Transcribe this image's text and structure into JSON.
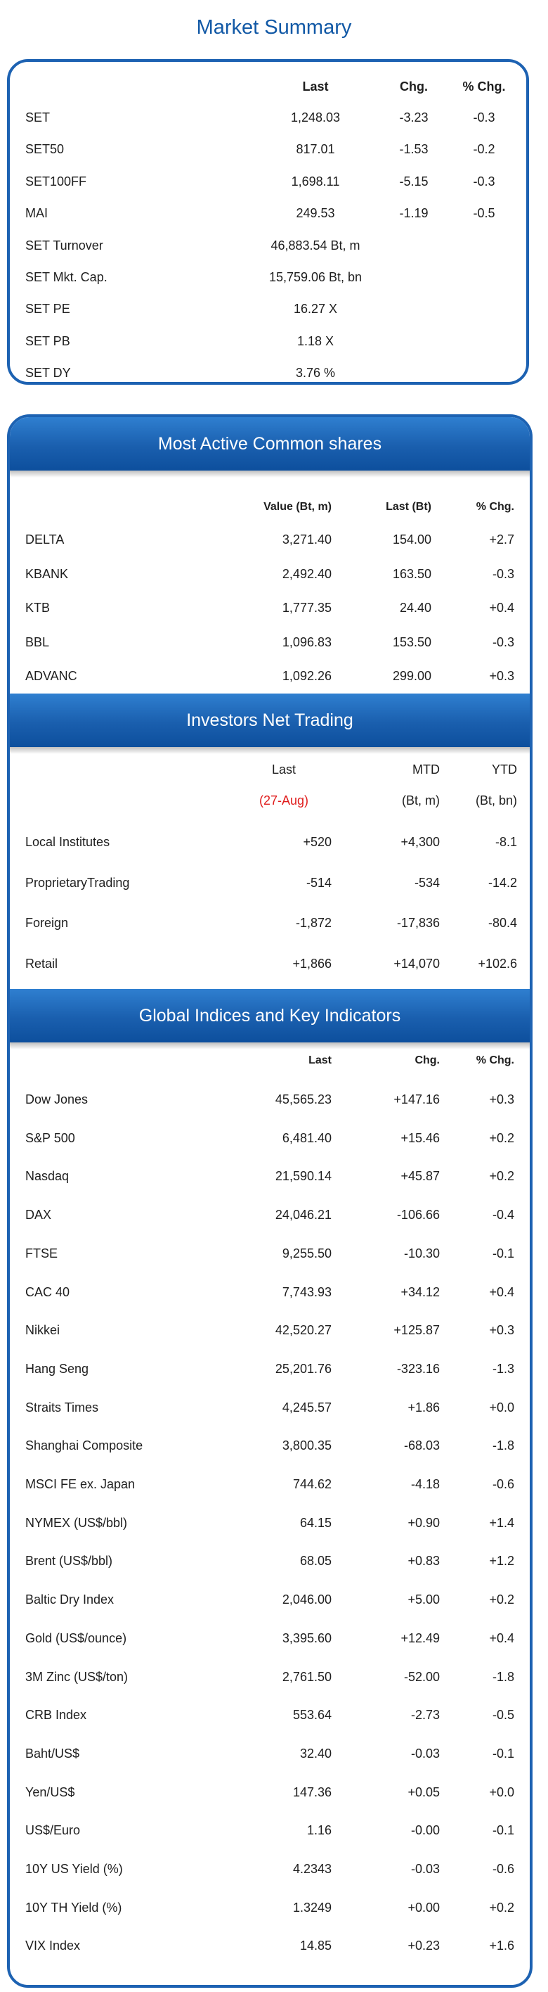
{
  "market_summary": {
    "title": "Market Summary",
    "headers": [
      "Last",
      "Chg.",
      "% Chg."
    ],
    "rows": [
      {
        "name": "SET",
        "last": "1,248.03",
        "chg": "-3.23",
        "pct": "-0.3"
      },
      {
        "name": "SET50",
        "last": "817.01",
        "chg": "-1.53",
        "pct": "-0.2"
      },
      {
        "name": "SET100FF",
        "last": "1,698.11",
        "chg": "-5.15",
        "pct": "-0.3"
      },
      {
        "name": "MAI",
        "last": "249.53",
        "chg": "-1.19",
        "pct": "-0.5"
      },
      {
        "name": "SET Turnover",
        "last": "46,883.54 Bt, m",
        "chg": "",
        "pct": ""
      },
      {
        "name": "SET Mkt. Cap.",
        "last": "15,759.06 Bt, bn",
        "chg": "",
        "pct": ""
      },
      {
        "name": "SET PE",
        "last": "16.27 X",
        "chg": "",
        "pct": ""
      },
      {
        "name": "SET PB",
        "last": "1.18 X",
        "chg": "",
        "pct": ""
      },
      {
        "name": "SET DY",
        "last": "3.76 %",
        "chg": "",
        "pct": ""
      }
    ]
  },
  "most_active": {
    "title": "Most Active Common shares",
    "headers": [
      "Value (Bt, m)",
      "Last (Bt)",
      "% Chg."
    ],
    "rows": [
      {
        "name": "DELTA",
        "value": "3,271.40",
        "last": "154.00",
        "pct": "+2.7"
      },
      {
        "name": "KBANK",
        "value": "2,492.40",
        "last": "163.50",
        "pct": "-0.3"
      },
      {
        "name": "KTB",
        "value": "1,777.35",
        "last": "24.40",
        "pct": "+0.4"
      },
      {
        "name": "BBL",
        "value": "1,096.83",
        "last": "153.50",
        "pct": "-0.3"
      },
      {
        "name": "ADVANC",
        "value": "1,092.26",
        "last": "299.00",
        "pct": "+0.3"
      }
    ]
  },
  "investors": {
    "title": "Investors Net Trading",
    "headers": [
      "Last",
      "MTD",
      "YTD"
    ],
    "subheaders": [
      "(27-Aug)",
      "(Bt, m)",
      "(Bt, bn)"
    ],
    "rows": [
      {
        "name": "Local Institutes",
        "last": "+520",
        "mtd": "+4,300",
        "ytd": "-8.1"
      },
      {
        "name": "ProprietaryTrading",
        "last": "-514",
        "mtd": "-534",
        "ytd": "-14.2"
      },
      {
        "name": "Foreign",
        "last": "-1,872",
        "mtd": "-17,836",
        "ytd": "-80.4"
      },
      {
        "name": "Retail",
        "last": "+1,866",
        "mtd": "+14,070",
        "ytd": "+102.6"
      }
    ]
  },
  "global": {
    "title": "Global Indices and Key Indicators",
    "headers": [
      "Last",
      "Chg.",
      "% Chg."
    ],
    "rows": [
      {
        "name": "Dow Jones",
        "last": "45,565.23",
        "chg": "+147.16",
        "pct": "+0.3"
      },
      {
        "name": "S&P 500",
        "last": "6,481.40",
        "chg": "+15.46",
        "pct": "+0.2"
      },
      {
        "name": "Nasdaq",
        "last": "21,590.14",
        "chg": "+45.87",
        "pct": "+0.2"
      },
      {
        "name": "DAX",
        "last": "24,046.21",
        "chg": "-106.66",
        "pct": "-0.4"
      },
      {
        "name": "FTSE",
        "last": "9,255.50",
        "chg": "-10.30",
        "pct": "-0.1"
      },
      {
        "name": "CAC 40",
        "last": "7,743.93",
        "chg": "+34.12",
        "pct": "+0.4"
      },
      {
        "name": "Nikkei",
        "last": "42,520.27",
        "chg": "+125.87",
        "pct": "+0.3"
      },
      {
        "name": "Hang Seng",
        "last": "25,201.76",
        "chg": "-323.16",
        "pct": "-1.3"
      },
      {
        "name": "Straits Times",
        "last": "4,245.57",
        "chg": "+1.86",
        "pct": "+0.0"
      },
      {
        "name": "Shanghai Composite",
        "last": "3,800.35",
        "chg": "-68.03",
        "pct": "-1.8"
      },
      {
        "name": "MSCI FE ex. Japan",
        "last": "744.62",
        "chg": "-4.18",
        "pct": "-0.6"
      },
      {
        "name": "NYMEX (US$/bbl)",
        "last": "64.15",
        "chg": "+0.90",
        "pct": "+1.4"
      },
      {
        "name": "Brent (US$/bbl)",
        "last": "68.05",
        "chg": "+0.83",
        "pct": "+1.2"
      },
      {
        "name": "Baltic Dry Index",
        "last": "2,046.00",
        "chg": "+5.00",
        "pct": "+0.2"
      },
      {
        "name": "Gold (US$/ounce)",
        "last": "3,395.60",
        "chg": "+12.49",
        "pct": "+0.4"
      },
      {
        "name": "3M Zinc (US$/ton)",
        "last": "2,761.50",
        "chg": "-52.00",
        "pct": "-1.8"
      },
      {
        "name": "CRB Index",
        "last": "553.64",
        "chg": "-2.73",
        "pct": "-0.5"
      },
      {
        "name": "Baht/US$",
        "last": "32.40",
        "chg": "-0.03",
        "pct": "-0.1"
      },
      {
        "name": "Yen/US$",
        "last": "147.36",
        "chg": "+0.05",
        "pct": "+0.0"
      },
      {
        "name": "US$/Euro",
        "last": "1.16",
        "chg": "-0.00",
        "pct": "-0.1"
      },
      {
        "name": "10Y US Yield (%)",
        "last": "4.2343",
        "chg": "-0.03",
        "pct": "-0.6"
      },
      {
        "name": "10Y TH Yield (%)",
        "last": "1.3249",
        "chg": "+0.00",
        "pct": "+0.2"
      },
      {
        "name": "VIX Index",
        "last": "14.85",
        "chg": "+0.23",
        "pct": "+1.6"
      }
    ]
  },
  "colors": {
    "accent": "#1d62b2",
    "title": "#1259a6",
    "highlight": "#e01b1b"
  }
}
